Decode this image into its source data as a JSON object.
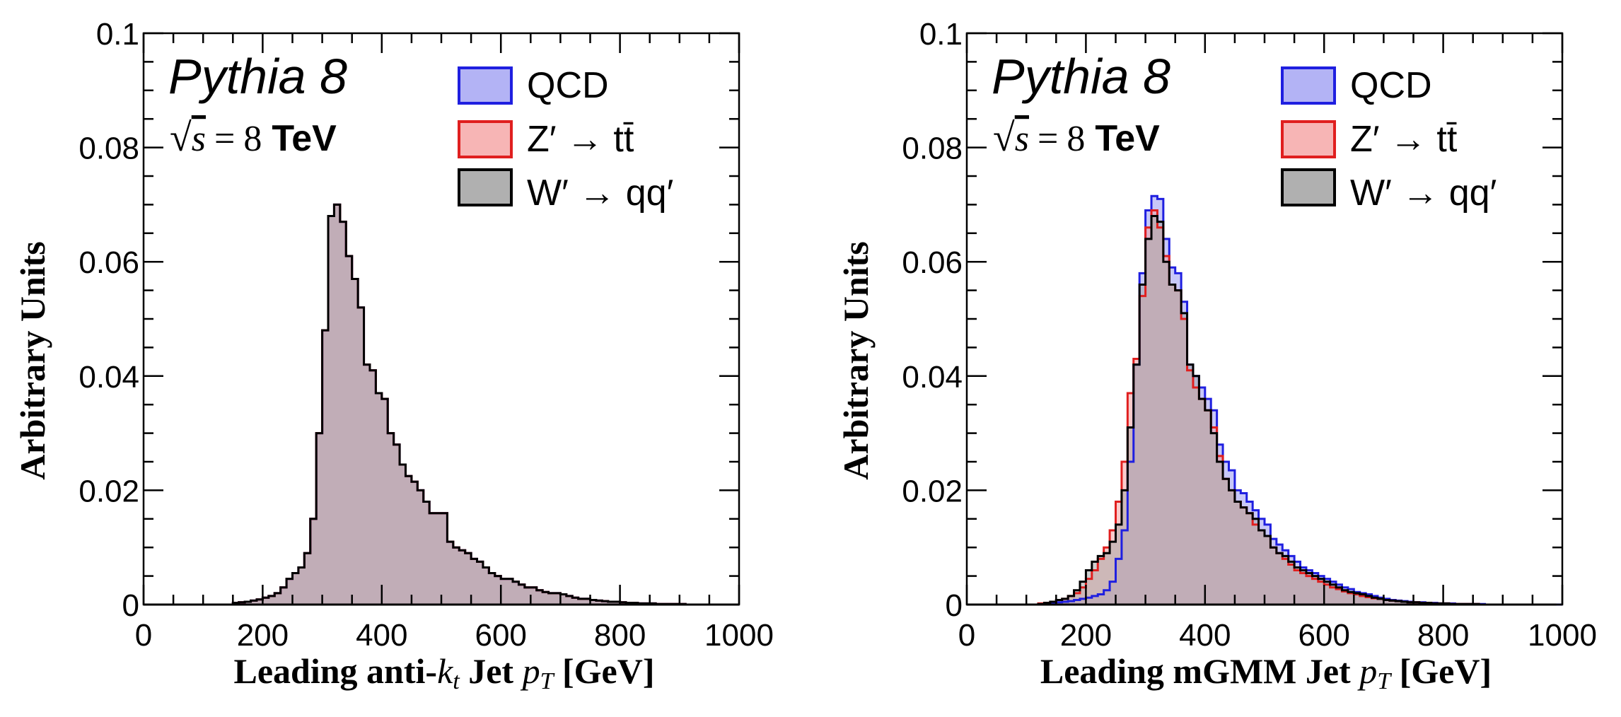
{
  "chart_data": [
    {
      "type": "histogram",
      "panel": "left",
      "xlabel_parts": {
        "pre": "Leading anti-",
        "k": "k",
        "t": "t",
        "mid": " Jet ",
        "p": "p",
        "T": "T",
        "post": " [GeV]"
      },
      "ylabel": "Arbitrary Units",
      "xlim": [
        0,
        1000
      ],
      "ylim": [
        0,
        0.1
      ],
      "xticks": [
        "0",
        "200",
        "400",
        "600",
        "800",
        "1000"
      ],
      "yticks": [
        "0",
        "0.02",
        "0.04",
        "0.06",
        "0.08",
        "0.1"
      ],
      "annotation": {
        "generator": "Pythia 8",
        "energy_value": "8",
        "energy_unit": "TeV"
      },
      "legend_position": "top-right",
      "legend": [
        "QCD",
        "Z′ → tt̄",
        "W′ → qq′"
      ],
      "bin_width": 10,
      "series": [
        {
          "name": "QCD",
          "color": "#1f1fe0",
          "fill": "#9a9af2",
          "values": [
            0.0,
            0.0,
            0.0,
            0.0,
            0.0,
            0.0,
            0.0,
            0.0,
            0.0,
            0.0,
            0.0,
            0.0,
            0.0,
            0.0,
            0.0,
            0.0003,
            0.0004,
            0.0005,
            0.0007,
            0.0009,
            0.0012,
            0.0015,
            0.002,
            0.003,
            0.0045,
            0.0055,
            0.0065,
            0.009,
            0.015,
            0.03,
            0.048,
            0.068,
            0.07,
            0.067,
            0.061,
            0.057,
            0.052,
            0.042,
            0.041,
            0.037,
            0.036,
            0.03,
            0.028,
            0.0245,
            0.0225,
            0.0215,
            0.02,
            0.018,
            0.016,
            0.016,
            0.016,
            0.011,
            0.01,
            0.0095,
            0.009,
            0.008,
            0.0075,
            0.0065,
            0.0055,
            0.005,
            0.0045,
            0.0045,
            0.004,
            0.0035,
            0.003,
            0.003,
            0.0025,
            0.0022,
            0.002,
            0.002,
            0.0018,
            0.0015,
            0.0012,
            0.001,
            0.001,
            0.0008,
            0.0007,
            0.0006,
            0.0005,
            0.0005,
            0.0004,
            0.0003,
            0.0003,
            0.0002,
            0.0002,
            0.0002,
            0.0001,
            0.0001,
            0.0001,
            0.0001,
            0.0001,
            0.0,
            0.0,
            0.0,
            0.0,
            0.0,
            0.0,
            0.0,
            0.0,
            0.0
          ]
        },
        {
          "name": "Z′ → tt̄",
          "color": "#e01f1f",
          "fill": "#f5a3a3",
          "values": [
            0.0,
            0.0,
            0.0,
            0.0,
            0.0,
            0.0,
            0.0,
            0.0,
            0.0,
            0.0,
            0.0,
            0.0,
            0.0,
            0.0,
            0.0,
            0.0003,
            0.0004,
            0.0005,
            0.0007,
            0.0009,
            0.0012,
            0.0015,
            0.002,
            0.003,
            0.0045,
            0.0055,
            0.0065,
            0.009,
            0.015,
            0.03,
            0.048,
            0.068,
            0.07,
            0.067,
            0.061,
            0.057,
            0.052,
            0.042,
            0.041,
            0.037,
            0.036,
            0.03,
            0.028,
            0.0245,
            0.0225,
            0.0215,
            0.02,
            0.018,
            0.016,
            0.016,
            0.016,
            0.011,
            0.01,
            0.0095,
            0.009,
            0.008,
            0.0075,
            0.0065,
            0.0055,
            0.005,
            0.0045,
            0.0045,
            0.004,
            0.0035,
            0.003,
            0.003,
            0.0025,
            0.0022,
            0.002,
            0.002,
            0.0018,
            0.0015,
            0.0012,
            0.001,
            0.001,
            0.0008,
            0.0007,
            0.0006,
            0.0005,
            0.0005,
            0.0004,
            0.0003,
            0.0003,
            0.0002,
            0.0002,
            0.0002,
            0.0001,
            0.0001,
            0.0001,
            0.0001,
            0.0001,
            0.0,
            0.0,
            0.0,
            0.0,
            0.0,
            0.0,
            0.0,
            0.0,
            0.0
          ]
        },
        {
          "name": "W′ → qq′",
          "color": "#000000",
          "fill": "#a8a8a8",
          "values": [
            0.0,
            0.0,
            0.0,
            0.0,
            0.0,
            0.0,
            0.0,
            0.0,
            0.0,
            0.0,
            0.0,
            0.0,
            0.0,
            0.0,
            0.0,
            0.0003,
            0.0004,
            0.0005,
            0.0007,
            0.0009,
            0.0012,
            0.0015,
            0.002,
            0.003,
            0.0045,
            0.0055,
            0.0065,
            0.009,
            0.015,
            0.03,
            0.048,
            0.068,
            0.07,
            0.067,
            0.061,
            0.057,
            0.052,
            0.042,
            0.041,
            0.037,
            0.036,
            0.03,
            0.028,
            0.0245,
            0.0225,
            0.0215,
            0.02,
            0.018,
            0.016,
            0.016,
            0.016,
            0.011,
            0.01,
            0.0095,
            0.009,
            0.008,
            0.0075,
            0.0065,
            0.0055,
            0.005,
            0.0045,
            0.0045,
            0.004,
            0.0035,
            0.003,
            0.003,
            0.0025,
            0.0022,
            0.002,
            0.002,
            0.0018,
            0.0015,
            0.0012,
            0.001,
            0.001,
            0.0008,
            0.0007,
            0.0006,
            0.0005,
            0.0005,
            0.0004,
            0.0003,
            0.0003,
            0.0002,
            0.0002,
            0.0002,
            0.0001,
            0.0001,
            0.0001,
            0.0001,
            0.0001,
            0.0,
            0.0,
            0.0,
            0.0,
            0.0,
            0.0,
            0.0,
            0.0,
            0.0
          ]
        }
      ]
    },
    {
      "type": "histogram",
      "panel": "right",
      "xlabel_parts": {
        "pre": "Leading mGMM Jet ",
        "p": "p",
        "T": "T",
        "post": " [GeV]"
      },
      "ylabel": "Arbitrary Units",
      "xlim": [
        0,
        1000
      ],
      "ylim": [
        0,
        0.1
      ],
      "xticks": [
        "0",
        "200",
        "400",
        "600",
        "800",
        "1000"
      ],
      "yticks": [
        "0",
        "0.02",
        "0.04",
        "0.06",
        "0.08",
        "0.1"
      ],
      "annotation": {
        "generator": "Pythia 8",
        "energy_value": "8",
        "energy_unit": "TeV"
      },
      "legend_position": "top-right",
      "legend": [
        "QCD",
        "Z′ → tt̄",
        "W′ → qq′"
      ],
      "bin_width": 10,
      "series": [
        {
          "name": "QCD",
          "color": "#1f1fe0",
          "fill": "#9a9af2",
          "values": [
            0.0,
            0.0,
            0.0,
            0.0,
            0.0,
            0.0,
            0.0,
            0.0,
            0.0,
            0.0,
            0.0,
            0.0,
            0.0001,
            0.0002,
            0.0003,
            0.0004,
            0.0005,
            0.0006,
            0.0008,
            0.001,
            0.0012,
            0.0015,
            0.0018,
            0.0025,
            0.004,
            0.008,
            0.013,
            0.025,
            0.042,
            0.058,
            0.069,
            0.0715,
            0.071,
            0.064,
            0.059,
            0.058,
            0.053,
            0.042,
            0.04,
            0.038,
            0.036,
            0.034,
            0.028,
            0.025,
            0.0235,
            0.02,
            0.0195,
            0.018,
            0.0165,
            0.015,
            0.014,
            0.0115,
            0.0105,
            0.0095,
            0.0085,
            0.0075,
            0.0065,
            0.006,
            0.0055,
            0.005,
            0.0045,
            0.004,
            0.0035,
            0.003,
            0.0027,
            0.0022,
            0.002,
            0.0018,
            0.0015,
            0.0012,
            0.001,
            0.0008,
            0.0007,
            0.0006,
            0.0005,
            0.0004,
            0.0004,
            0.0003,
            0.0003,
            0.0002,
            0.0002,
            0.0002,
            0.0001,
            0.0001,
            0.0001,
            0.0001,
            0.0001,
            0.0,
            0.0,
            0.0,
            0.0,
            0.0,
            0.0,
            0.0,
            0.0,
            0.0,
            0.0,
            0.0,
            0.0,
            0.0
          ]
        },
        {
          "name": "Z′ → tt̄",
          "color": "#e01f1f",
          "fill": "#f5a3a3",
          "values": [
            0.0,
            0.0,
            0.0,
            0.0,
            0.0,
            0.0,
            0.0,
            0.0,
            0.0,
            0.0,
            0.0,
            0.0,
            0.0002,
            0.0003,
            0.0005,
            0.0008,
            0.001,
            0.0015,
            0.002,
            0.003,
            0.0045,
            0.006,
            0.008,
            0.01,
            0.013,
            0.018,
            0.025,
            0.037,
            0.043,
            0.054,
            0.066,
            0.069,
            0.066,
            0.061,
            0.056,
            0.055,
            0.05,
            0.041,
            0.038,
            0.036,
            0.034,
            0.031,
            0.026,
            0.022,
            0.02,
            0.018,
            0.017,
            0.016,
            0.014,
            0.013,
            0.012,
            0.01,
            0.009,
            0.008,
            0.007,
            0.006,
            0.0055,
            0.005,
            0.0045,
            0.004,
            0.0035,
            0.003,
            0.0027,
            0.0023,
            0.002,
            0.0018,
            0.0015,
            0.0013,
            0.0011,
            0.001,
            0.0008,
            0.0007,
            0.0006,
            0.0005,
            0.0004,
            0.0004,
            0.0003,
            0.0003,
            0.0002,
            0.0002,
            0.0002,
            0.0001,
            0.0001,
            0.0001,
            0.0001,
            0.0001,
            0.0,
            0.0,
            0.0,
            0.0,
            0.0,
            0.0,
            0.0,
            0.0,
            0.0,
            0.0,
            0.0,
            0.0,
            0.0
          ]
        },
        {
          "name": "W′ → qq′",
          "color": "#000000",
          "fill": "#a8a8a8",
          "values": [
            0.0,
            0.0,
            0.0,
            0.0,
            0.0,
            0.0,
            0.0,
            0.0,
            0.0,
            0.0,
            0.0,
            0.0,
            0.0001,
            0.0003,
            0.0005,
            0.0008,
            0.001,
            0.0015,
            0.0025,
            0.004,
            0.006,
            0.0075,
            0.0085,
            0.009,
            0.011,
            0.014,
            0.02,
            0.031,
            0.042,
            0.056,
            0.064,
            0.068,
            0.067,
            0.06,
            0.056,
            0.055,
            0.051,
            0.042,
            0.04,
            0.036,
            0.034,
            0.03,
            0.025,
            0.022,
            0.02,
            0.018,
            0.017,
            0.016,
            0.015,
            0.013,
            0.012,
            0.01,
            0.009,
            0.0085,
            0.0075,
            0.0065,
            0.006,
            0.0055,
            0.005,
            0.0045,
            0.004,
            0.0035,
            0.003,
            0.0025,
            0.0022,
            0.002,
            0.0018,
            0.0015,
            0.0012,
            0.001,
            0.0008,
            0.0007,
            0.0006,
            0.0005,
            0.0004,
            0.0004,
            0.0003,
            0.0003,
            0.0002,
            0.0002,
            0.0002,
            0.0001,
            0.0001,
            0.0001,
            0.0001,
            0.0001,
            0.0,
            0.0,
            0.0,
            0.0,
            0.0,
            0.0,
            0.0,
            0.0,
            0.0,
            0.0,
            0.0,
            0.0,
            0.0
          ]
        }
      ]
    }
  ]
}
